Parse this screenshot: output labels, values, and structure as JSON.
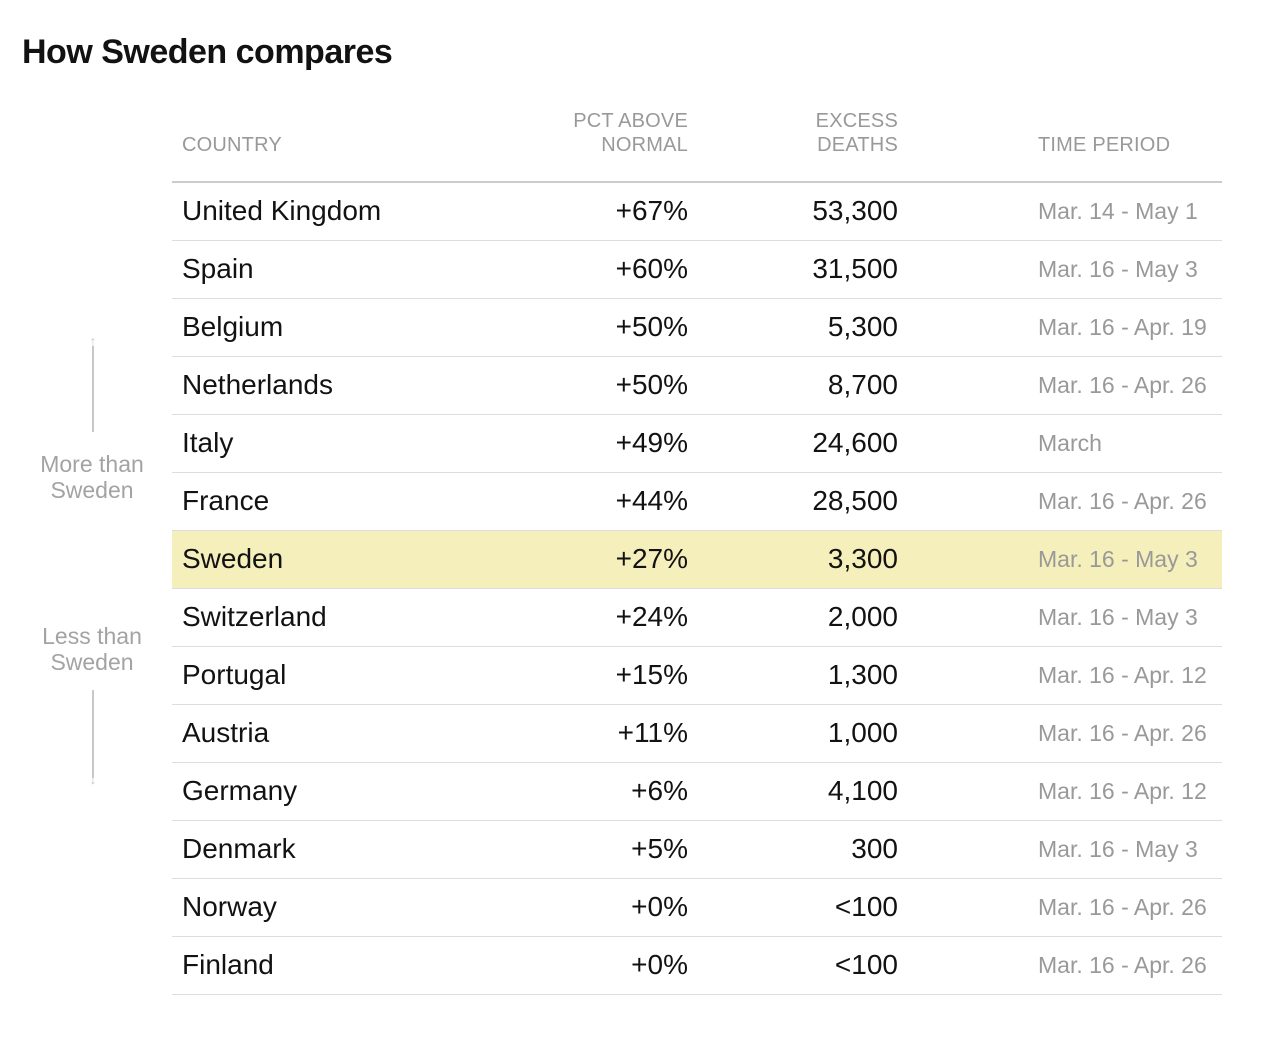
{
  "title": "How Sweden compares",
  "side_labels": {
    "more": "More than Sweden",
    "less": "Less than Sweden"
  },
  "chart_data": {
    "type": "table",
    "title": "How Sweden compares",
    "columns": [
      "COUNTRY",
      "PCT ABOVE NORMAL",
      "EXCESS DEATHS",
      "TIME PERIOD"
    ],
    "highlight_color": "#f5efbb",
    "highlighted_row": "Sweden",
    "rows": [
      {
        "country": "United Kingdom",
        "pct": "+67%",
        "excess": "53,300",
        "period": "Mar. 14 - May 1"
      },
      {
        "country": "Spain",
        "pct": "+60%",
        "excess": "31,500",
        "period": "Mar. 16 - May 3"
      },
      {
        "country": "Belgium",
        "pct": "+50%",
        "excess": "5,300",
        "period": "Mar. 16 - Apr. 19"
      },
      {
        "country": "Netherlands",
        "pct": "+50%",
        "excess": "8,700",
        "period": "Mar. 16 - Apr. 26"
      },
      {
        "country": "Italy",
        "pct": "+49%",
        "excess": "24,600",
        "period": "March"
      },
      {
        "country": "France",
        "pct": "+44%",
        "excess": "28,500",
        "period": "Mar. 16 - Apr. 26"
      },
      {
        "country": "Sweden",
        "pct": "+27%",
        "excess": "3,300",
        "period": "Mar. 16 - May 3",
        "highlight": true
      },
      {
        "country": "Switzerland",
        "pct": "+24%",
        "excess": "2,000",
        "period": "Mar. 16 - May 3"
      },
      {
        "country": "Portugal",
        "pct": "+15%",
        "excess": "1,300",
        "period": "Mar. 16 - Apr. 12"
      },
      {
        "country": "Austria",
        "pct": "+11%",
        "excess": "1,000",
        "period": "Mar. 16 - Apr. 26"
      },
      {
        "country": "Germany",
        "pct": "+6%",
        "excess": "4,100",
        "period": "Mar. 16 - Apr. 12"
      },
      {
        "country": "Denmark",
        "pct": "+5%",
        "excess": "300",
        "period": "Mar. 16 - May 3"
      },
      {
        "country": "Norway",
        "pct": "+0%",
        "excess": "<100",
        "period": "Mar. 16 - Apr. 26"
      },
      {
        "country": "Finland",
        "pct": "+0%",
        "excess": "<100",
        "period": "Mar. 16 - Apr. 26"
      }
    ]
  },
  "header_lines": {
    "country": [
      "COUNTRY"
    ],
    "pct": [
      "PCT ABOVE",
      "NORMAL"
    ],
    "excess": [
      "EXCESS",
      "DEATHS"
    ],
    "period": [
      "TIME PERIOD"
    ]
  }
}
